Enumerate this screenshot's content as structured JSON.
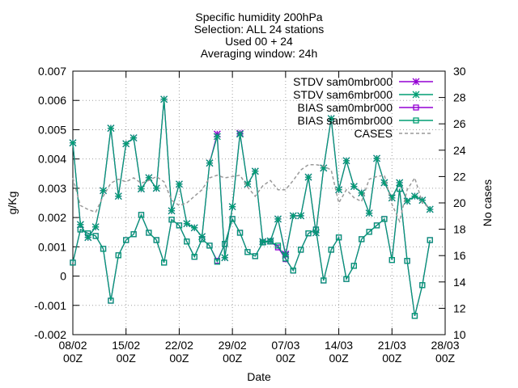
{
  "chart_data": {
    "type": "line",
    "title": "Specific humidity 200hPa",
    "subtitle": [
      "Selection: ALL      24 stations",
      "Used 00 + 24",
      "Averaging window: 24h"
    ],
    "xlabel": "Date",
    "ylabel": "g/Kg",
    "y2label": "No cases",
    "x": [
      0,
      1,
      2,
      3,
      4,
      5,
      6,
      7,
      8,
      9,
      10,
      11,
      12,
      13,
      14,
      15,
      16,
      17,
      18,
      19,
      20,
      21,
      22,
      23,
      24,
      25,
      26,
      27,
      28,
      29,
      30,
      31,
      32,
      33,
      34,
      35,
      36,
      37,
      38,
      39,
      40,
      41,
      42,
      43,
      44,
      45,
      46,
      47
    ],
    "xlim": [
      0,
      49
    ],
    "xticks": [
      {
        "value": 0,
        "label": "08/02\n00Z"
      },
      {
        "value": 7,
        "label": "15/02\n00Z"
      },
      {
        "value": 14,
        "label": "22/02\n00Z"
      },
      {
        "value": 21,
        "label": "29/02\n00Z"
      },
      {
        "value": 28,
        "label": "07/03\n00Z"
      },
      {
        "value": 35,
        "label": "14/03\n00Z"
      },
      {
        "value": 42,
        "label": "21/03\n00Z"
      },
      {
        "value": 49,
        "label": "28/03\n00Z"
      }
    ],
    "ylim": [
      -0.002,
      0.007
    ],
    "yticks": [
      -0.002,
      -0.001,
      0,
      0.001,
      0.002,
      0.003,
      0.004,
      0.005,
      0.006,
      0.007
    ],
    "y2lim": [
      10,
      30
    ],
    "y2ticks": [
      10,
      12,
      14,
      16,
      18,
      20,
      22,
      24,
      26,
      28,
      30
    ],
    "grid": true,
    "legend": "upper right",
    "series": [
      {
        "name": "STDV sam0mbr000",
        "color": "#9400d3",
        "marker": "star",
        "values": [
          0.00455,
          0.00176,
          0.00132,
          0.00168,
          0.00292,
          0.00505,
          0.00273,
          0.00452,
          0.00472,
          0.00298,
          0.00336,
          0.003,
          0.00604,
          0.00223,
          0.00314,
          0.00179,
          0.00165,
          0.00135,
          0.00386,
          0.00485,
          0.00063,
          0.00237,
          0.00488,
          0.00314,
          0.00358,
          0.00118,
          0.0012,
          0.00195,
          0.00075,
          0.00206,
          0.00206,
          0.00338,
          0.00148,
          0.00369,
          0.00538,
          0.00295,
          0.00394,
          0.00306,
          0.00284,
          0.00215,
          0.00402,
          0.00319,
          0.00267,
          0.00319,
          0.00256,
          0.00273,
          0.00259,
          0.00228
        ]
      },
      {
        "name": "STDV sam6mbr000",
        "color": "#009e73",
        "marker": "star",
        "values": [
          0.00455,
          0.00176,
          0.00132,
          0.00168,
          0.00292,
          0.00505,
          0.00273,
          0.00452,
          0.00472,
          0.00298,
          0.00336,
          0.003,
          0.00604,
          0.00223,
          0.00314,
          0.00179,
          0.00165,
          0.00135,
          0.00386,
          0.00477,
          0.00063,
          0.00237,
          0.00485,
          0.00314,
          0.00358,
          0.00118,
          0.0012,
          0.00195,
          0.00071,
          0.00206,
          0.00206,
          0.00338,
          0.00148,
          0.00369,
          0.00538,
          0.00295,
          0.00394,
          0.00306,
          0.00284,
          0.00215,
          0.00402,
          0.00319,
          0.00267,
          0.00319,
          0.00256,
          0.00273,
          0.00259,
          0.00228
        ]
      },
      {
        "name": "BIAS sam0mbr000",
        "color": "#9400d3",
        "marker": "square",
        "values": [
          0.00046,
          0.00159,
          0.00146,
          0.00137,
          0.00093,
          -0.00084,
          0.00071,
          0.00123,
          0.00143,
          0.00209,
          0.00148,
          0.00123,
          0.00046,
          0.00193,
          0.00173,
          0.00118,
          0.00066,
          0.00126,
          0.00104,
          0.00052,
          0.0011,
          0.00195,
          0.00148,
          0.00082,
          0.00068,
          0.00115,
          0.00118,
          0.00098,
          0.00058,
          0.00019,
          0.0009,
          0.00146,
          0.00159,
          -0.00015,
          0.0009,
          0.00132,
          -0.0001,
          0.00035,
          0.00126,
          0.00151,
          0.00173,
          0.00195,
          0.00055,
          0.00298,
          0.00052,
          -0.00136,
          -0.00031,
          0.00123
        ]
      },
      {
        "name": "BIAS sam6mbr000",
        "color": "#009e73",
        "marker": "square",
        "values": [
          0.00046,
          0.00159,
          0.00146,
          0.00137,
          0.00093,
          -0.00084,
          0.00071,
          0.00123,
          0.00143,
          0.00209,
          0.00148,
          0.00123,
          0.00046,
          0.00193,
          0.00173,
          0.00118,
          0.00066,
          0.00126,
          0.00104,
          0.00049,
          0.0011,
          0.00195,
          0.00148,
          0.00082,
          0.00068,
          0.00115,
          0.00118,
          0.00104,
          0.0006,
          0.00019,
          0.0009,
          0.00146,
          0.00159,
          -0.00015,
          0.0009,
          0.00132,
          -0.0001,
          0.00035,
          0.00126,
          0.00151,
          0.00173,
          0.00195,
          0.00055,
          0.00298,
          0.00052,
          -0.00136,
          -0.00031,
          0.00123
        ]
      },
      {
        "name": "CASES",
        "color": "#999999",
        "marker": "none",
        "dashed": true,
        "axis": "y2",
        "values": [
          21.9,
          19.8,
          19.5,
          19.3,
          20.5,
          21.5,
          21.8,
          21.6,
          21.9,
          21.5,
          21.7,
          22.0,
          21.6,
          20.2,
          19.8,
          20.0,
          20.5,
          21.0,
          21.9,
          22.1,
          21.9,
          22.0,
          22.1,
          21.2,
          20.5,
          21.3,
          21.7,
          21.0,
          21.0,
          21.7,
          22.5,
          22.9,
          22.9,
          22.8,
          22.5,
          20.0,
          21.0,
          20.4,
          20.1,
          21.8,
          22.0,
          22.1,
          19.9,
          18.6,
          21.0,
          21.9,
          20.0,
          19.6
        ]
      }
    ]
  }
}
